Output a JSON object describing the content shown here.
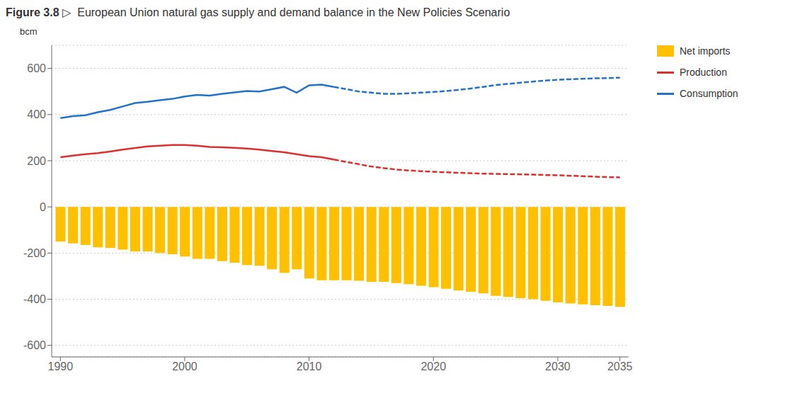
{
  "chart_data": {
    "type": "bar",
    "title": "Figure 3.8",
    "subtitle": "▷  European Union natural gas supply and demand balance in the New Policies Scenario",
    "y_label": "bcm",
    "x": [
      1990,
      1991,
      1992,
      1993,
      1994,
      1995,
      1996,
      1997,
      1998,
      1999,
      2000,
      2001,
      2002,
      2003,
      2004,
      2005,
      2006,
      2007,
      2008,
      2009,
      2010,
      2011,
      2012,
      2013,
      2014,
      2015,
      2016,
      2017,
      2018,
      2019,
      2020,
      2021,
      2022,
      2023,
      2024,
      2025,
      2026,
      2027,
      2028,
      2029,
      2030,
      2031,
      2032,
      2033,
      2034,
      2035
    ],
    "xlim": [
      1989.3,
      2035.7
    ],
    "xticks": [
      1990,
      2000,
      2010,
      2020,
      2030,
      2035
    ],
    "ylim": [
      -650,
      700
    ],
    "yticks": [
      -600,
      -400,
      -200,
      0,
      200,
      400,
      600
    ],
    "grid": true,
    "series": [
      {
        "name": "Net imports",
        "type": "bar",
        "color": "#FFC000",
        "values": [
          -150,
          -158,
          -165,
          -175,
          -178,
          -185,
          -193,
          -193,
          -200,
          -205,
          -215,
          -225,
          -225,
          -235,
          -242,
          -252,
          -255,
          -270,
          -286,
          -270,
          -310,
          -318,
          -318,
          -318,
          -320,
          -325,
          -325,
          -330,
          -335,
          -342,
          -348,
          -355,
          -362,
          -368,
          -375,
          -385,
          -390,
          -395,
          -400,
          -407,
          -414,
          -418,
          -422,
          -426,
          -429,
          -433
        ]
      },
      {
        "name": "Production",
        "type": "line",
        "line_style": "solid",
        "color": "#D93030",
        "values": [
          215,
          222,
          228,
          233,
          240,
          248,
          255,
          262,
          265,
          268,
          268,
          265,
          260,
          258,
          256,
          253,
          248,
          242,
          237,
          228,
          220,
          215,
          205,
          null,
          null,
          null,
          null,
          null,
          null,
          null,
          null,
          null,
          null,
          null,
          null,
          null,
          null,
          null,
          null,
          null,
          null,
          null,
          null,
          null,
          null,
          null
        ]
      },
      {
        "name": "Production",
        "type": "line",
        "line_style": "dashed",
        "color": "#D93030",
        "values": [
          null,
          null,
          null,
          null,
          null,
          null,
          null,
          null,
          null,
          null,
          null,
          null,
          null,
          null,
          null,
          null,
          null,
          null,
          null,
          null,
          null,
          null,
          205,
          195,
          185,
          175,
          168,
          162,
          158,
          155,
          152,
          150,
          148,
          146,
          144,
          143,
          142,
          141,
          140,
          138,
          137,
          135,
          133,
          131,
          129,
          128
        ]
      },
      {
        "name": "Consumption",
        "type": "line",
        "line_style": "solid",
        "color": "#2472C8",
        "values": [
          385,
          393,
          397,
          410,
          420,
          435,
          450,
          455,
          462,
          468,
          478,
          485,
          482,
          490,
          496,
          502,
          500,
          510,
          520,
          495,
          527,
          530,
          520,
          null,
          null,
          null,
          null,
          null,
          null,
          null,
          null,
          null,
          null,
          null,
          null,
          null,
          null,
          null,
          null,
          null,
          null,
          null,
          null,
          null,
          null,
          null
        ]
      },
      {
        "name": "Consumption",
        "type": "line",
        "line_style": "dashed",
        "color": "#2472C8",
        "values": [
          null,
          null,
          null,
          null,
          null,
          null,
          null,
          null,
          null,
          null,
          null,
          null,
          null,
          null,
          null,
          null,
          null,
          null,
          null,
          null,
          null,
          null,
          520,
          510,
          500,
          495,
          490,
          490,
          492,
          495,
          498,
          502,
          507,
          513,
          520,
          528,
          533,
          538,
          543,
          547,
          551,
          553,
          555,
          557,
          558,
          560
        ]
      }
    ]
  }
}
